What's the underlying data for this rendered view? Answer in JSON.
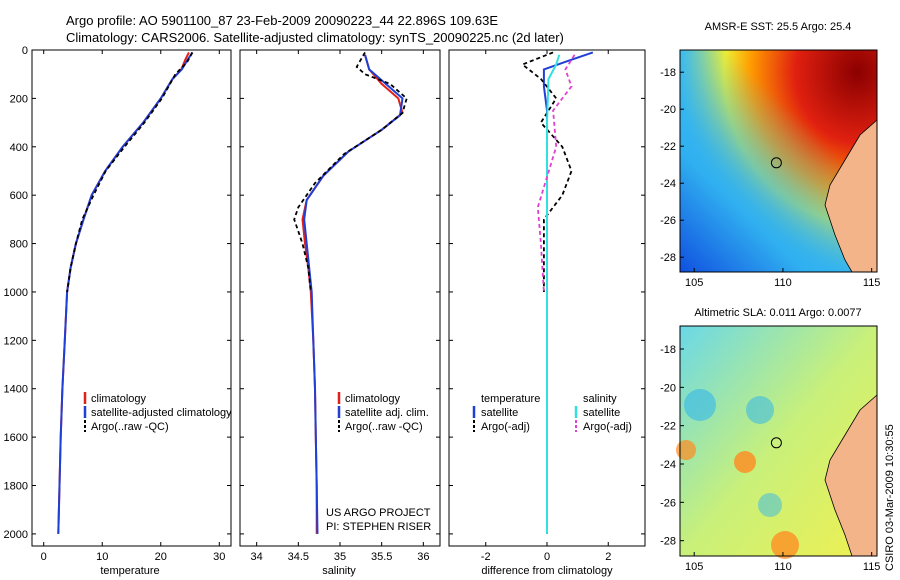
{
  "header": {
    "line1": "Argo profile: AO 5901100_87 23-Feb-2009 20090223_44 22.896S 109.63E",
    "line2": "Climatology: CARS2006. Satellite-adjusted climatology: synTS_20090225.nc (2d later)"
  },
  "colors": {
    "climatology": "#e0201b",
    "satellite": "#1f3fd6",
    "argo": "#000000",
    "salinity_satellite": "#33e0e0",
    "salinity_argo": "#e040d0"
  },
  "chart_data": [
    {
      "type": "line",
      "id": "temperature",
      "xlabel": "temperature",
      "ylabel": "",
      "xlim": [
        -2,
        32
      ],
      "ylim": [
        2050,
        0
      ],
      "xticks": [
        0,
        10,
        20,
        30
      ],
      "yticks": [
        0,
        200,
        400,
        600,
        800,
        1000,
        1200,
        1400,
        1600,
        1800,
        2000
      ],
      "series": [
        {
          "name": "climatology",
          "color": "#e0201b",
          "dash": "",
          "points": [
            [
              24.8,
              10
            ],
            [
              24.2,
              40
            ],
            [
              23.5,
              80
            ],
            [
              22,
              120
            ],
            [
              20,
              200
            ],
            [
              17,
              300
            ],
            [
              13.5,
              400
            ],
            [
              10.5,
              500
            ],
            [
              8.2,
              600
            ],
            [
              6.8,
              700
            ],
            [
              5.5,
              800
            ],
            [
              4.6,
              900
            ],
            [
              4.0,
              1000
            ],
            [
              3.6,
              1200
            ],
            [
              3.2,
              1400
            ],
            [
              2.9,
              1600
            ],
            [
              2.7,
              1800
            ],
            [
              2.5,
              2000
            ]
          ]
        },
        {
          "name": "satellite-adjusted climatology",
          "color": "#1f3fd6",
          "dash": "",
          "points": [
            [
              25.4,
              10
            ],
            [
              24.6,
              40
            ],
            [
              23.6,
              80
            ],
            [
              22,
              120
            ],
            [
              20,
              200
            ],
            [
              17,
              300
            ],
            [
              13.5,
              400
            ],
            [
              10.5,
              500
            ],
            [
              8.2,
              600
            ],
            [
              6.8,
              700
            ],
            [
              5.5,
              800
            ],
            [
              4.6,
              900
            ],
            [
              4.0,
              1000
            ],
            [
              3.6,
              1200
            ],
            [
              3.2,
              1400
            ],
            [
              2.9,
              1600
            ],
            [
              2.7,
              1800
            ],
            [
              2.5,
              2000
            ]
          ]
        },
        {
          "name": "Argo(..raw -QC)",
          "color": "#000000",
          "dash": "4,3",
          "points": [
            [
              25.4,
              10
            ],
            [
              24.5,
              50
            ],
            [
              22.5,
              100
            ],
            [
              20.2,
              200
            ],
            [
              17.2,
              300
            ],
            [
              13.8,
              400
            ],
            [
              10.6,
              500
            ],
            [
              8.5,
              600
            ],
            [
              6.6,
              700
            ],
            [
              5.5,
              800
            ],
            [
              4.6,
              900
            ],
            [
              4.0,
              1000
            ]
          ]
        }
      ],
      "legend": [
        "climatology",
        "satellite-adjusted climatology",
        "Argo(..raw -QC)"
      ]
    },
    {
      "type": "line",
      "id": "salinity",
      "xlabel": "salinity",
      "ylabel": "",
      "xlim": [
        33.8,
        36.2
      ],
      "ylim": [
        2050,
        0
      ],
      "xticks": [
        34,
        34.5,
        35,
        35.5,
        36
      ],
      "yticks": [
        0,
        200,
        400,
        600,
        800,
        1000,
        1200,
        1400,
        1600,
        1800,
        2000
      ],
      "series": [
        {
          "name": "climatology",
          "color": "#e0201b",
          "dash": "",
          "points": [
            [
              35.3,
              20
            ],
            [
              35.35,
              80
            ],
            [
              35.5,
              140
            ],
            [
              35.7,
              200
            ],
            [
              35.75,
              260
            ],
            [
              35.5,
              330
            ],
            [
              35.1,
              420
            ],
            [
              34.8,
              520
            ],
            [
              34.6,
              620
            ],
            [
              34.55,
              700
            ],
            [
              34.58,
              800
            ],
            [
              34.62,
              900
            ],
            [
              34.65,
              1000
            ],
            [
              34.68,
              1200
            ],
            [
              34.7,
              1400
            ],
            [
              34.71,
              1600
            ],
            [
              34.72,
              1800
            ],
            [
              34.72,
              2000
            ]
          ]
        },
        {
          "name": "satellite adj. clim.",
          "color": "#1f3fd6",
          "dash": "",
          "points": [
            [
              35.3,
              20
            ],
            [
              35.35,
              80
            ],
            [
              35.55,
              140
            ],
            [
              35.75,
              200
            ],
            [
              35.72,
              270
            ],
            [
              35.5,
              330
            ],
            [
              35.1,
              420
            ],
            [
              34.8,
              520
            ],
            [
              34.6,
              620
            ],
            [
              34.57,
              700
            ],
            [
              34.6,
              800
            ],
            [
              34.63,
              900
            ],
            [
              34.66,
              1000
            ],
            [
              34.68,
              1200
            ],
            [
              34.7,
              1400
            ],
            [
              34.71,
              1600
            ],
            [
              34.72,
              1800
            ],
            [
              34.73,
              2000
            ]
          ]
        },
        {
          "name": "Argo(..raw -QC)",
          "color": "#000000",
          "dash": "4,3",
          "points": [
            [
              35.3,
              10
            ],
            [
              35.2,
              70
            ],
            [
              35.3,
              100
            ],
            [
              35.6,
              140
            ],
            [
              35.8,
              200
            ],
            [
              35.75,
              260
            ],
            [
              35.5,
              330
            ],
            [
              35.05,
              430
            ],
            [
              34.7,
              550
            ],
            [
              34.5,
              650
            ],
            [
              34.45,
              700
            ],
            [
              34.55,
              800
            ],
            [
              34.62,
              900
            ],
            [
              34.65,
              1000
            ]
          ]
        }
      ],
      "legend": [
        "climatology",
        "satellite adj. clim.",
        "Argo(..raw -QC)"
      ],
      "annotations": [
        "US ARGO PROJECT",
        "PI: STEPHEN RISER"
      ]
    },
    {
      "type": "line",
      "id": "difference",
      "xlabel": "difference from climatology",
      "ylabel": "",
      "xlim": [
        -3.2,
        3.2
      ],
      "ylim": [
        2050,
        0
      ],
      "xticks": [
        -2,
        0,
        2
      ],
      "yticks": [
        0,
        200,
        400,
        600,
        800,
        1000,
        1200,
        1400,
        1600,
        1800,
        2000
      ],
      "series": [
        {
          "name": "temperature satellite",
          "color": "#1f3fd6",
          "dash": "",
          "points": [
            [
              1.5,
              10
            ],
            [
              0.8,
              40
            ],
            [
              -0.1,
              80
            ],
            [
              -0.1,
              150
            ],
            [
              0.0,
              250
            ],
            [
              0.0,
              400
            ],
            [
              0.0,
              600
            ],
            [
              0.0,
              800
            ],
            [
              0.0,
              1000
            ],
            [
              0.0,
              1500
            ],
            [
              0.0,
              2000
            ]
          ]
        },
        {
          "name": "temperature Argo(-adj)",
          "color": "#000000",
          "dash": "4,3",
          "points": [
            [
              0.2,
              10
            ],
            [
              -0.8,
              60
            ],
            [
              -0.2,
              120
            ],
            [
              0.3,
              200
            ],
            [
              -0.2,
              300
            ],
            [
              0.5,
              400
            ],
            [
              0.8,
              500
            ],
            [
              0.5,
              600
            ],
            [
              -0.1,
              700
            ],
            [
              -0.1,
              850
            ],
            [
              -0.1,
              1000
            ]
          ]
        },
        {
          "name": "salinity satellite",
          "color": "#33e0e0",
          "dash": "",
          "points": [
            [
              0.4,
              20
            ],
            [
              0.3,
              60
            ],
            [
              0.05,
              120
            ],
            [
              0.0,
              300
            ],
            [
              0.0,
              600
            ],
            [
              0.0,
              1000
            ],
            [
              0.0,
              1500
            ],
            [
              0.0,
              2000
            ]
          ]
        },
        {
          "name": "salinity Argo(-adj)",
          "color": "#e040d0",
          "dash": "4,3",
          "points": [
            [
              0.9,
              20
            ],
            [
              0.6,
              80
            ],
            [
              0.8,
              150
            ],
            [
              0.2,
              250
            ],
            [
              0.3,
              400
            ],
            [
              -0.3,
              650
            ],
            [
              -0.2,
              800
            ],
            [
              -0.1,
              1000
            ]
          ]
        }
      ],
      "legend_headers": [
        "temperature",
        "salinity"
      ],
      "legend": [
        "satellite",
        "Argo(-adj)",
        "satellite",
        "Argo(-adj)"
      ]
    },
    {
      "type": "heatmap",
      "id": "sst-map",
      "title": "AMSR-E SST: 25.5 Argo: 25.4",
      "xlim": [
        104.2,
        115.3
      ],
      "ylim": [
        -28.8,
        -16.8
      ],
      "xticks": [
        105,
        110,
        115
      ],
      "yticks": [
        -18,
        -20,
        -22,
        -24,
        -26,
        -28
      ],
      "marker": [
        109.63,
        -22.896
      ]
    },
    {
      "type": "heatmap",
      "id": "sla-map",
      "title": "Altimetric SLA: 0.011 Argo: 0.0077",
      "xlim": [
        104.2,
        115.3
      ],
      "ylim": [
        -28.8,
        -16.8
      ],
      "xticks": [
        105,
        110,
        115
      ],
      "yticks": [
        -18,
        -20,
        -22,
        -24,
        -26,
        -28
      ],
      "marker": [
        109.63,
        -22.896
      ]
    }
  ],
  "footer": {
    "stamp": "CSIRO 03-Mar-2009 10:30:55"
  }
}
